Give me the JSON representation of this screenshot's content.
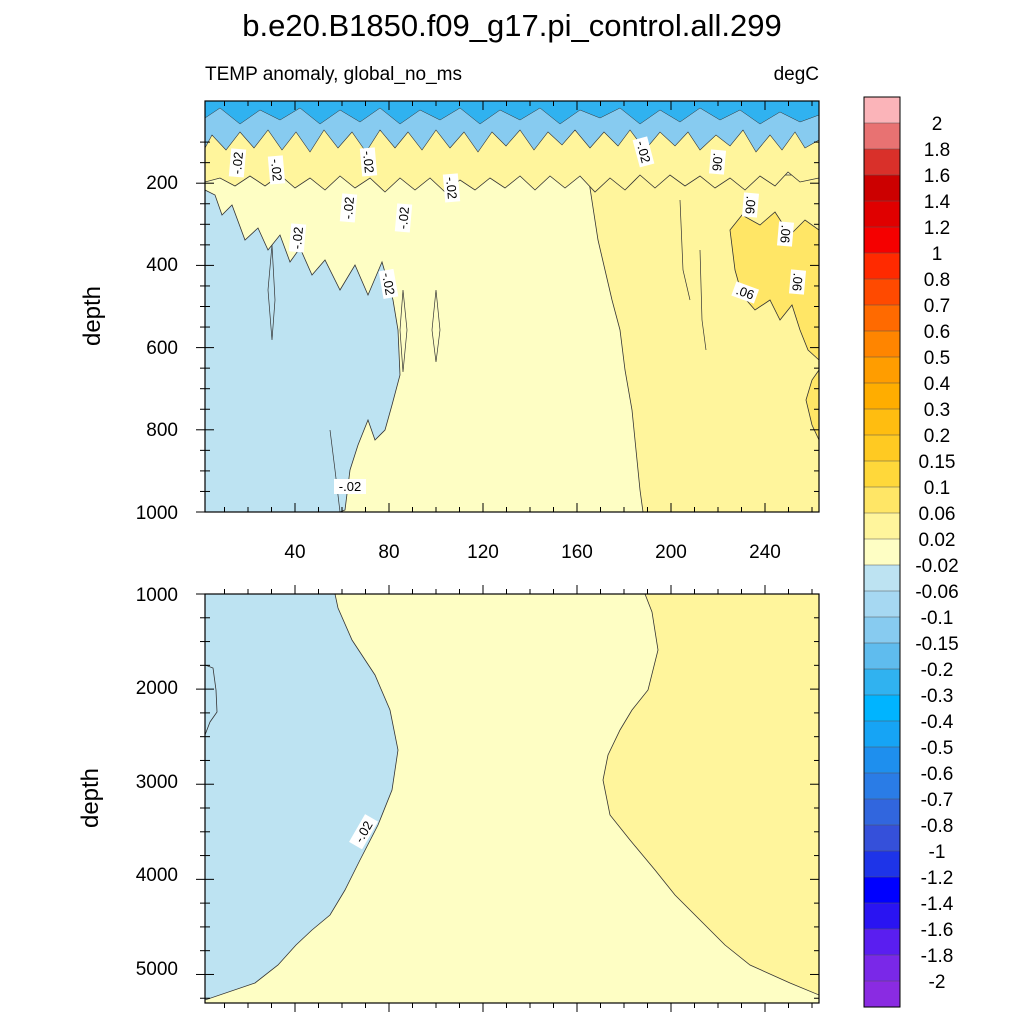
{
  "chart_data": {
    "type": "heatmap",
    "title": "b.e20.B1850.f09_g17.pi_control.all.299",
    "subtitle_left": "TEMP anomaly, global_no_ms",
    "subtitle_right": "degC",
    "x_ticks": [
      "40",
      "80",
      "120",
      "160",
      "200",
      "240"
    ],
    "x_range": [
      1,
      262
    ],
    "panels": [
      {
        "name": "upper",
        "ylabel": "depth",
        "ylim": [
          0,
          1000
        ],
        "y_ticks": [
          "200",
          "400",
          "600",
          "800",
          "1000"
        ],
        "contour_labels": [
          "-.02",
          "-.02",
          "-.02",
          "-.02",
          "-.02",
          "-.02",
          "-.02",
          "-.02",
          "-.02",
          "-.02",
          ".06",
          ".06",
          ".06",
          ".06",
          ".06"
        ],
        "regions": [
          {
            "level": "-0.06 to -0.02",
            "x": [
              1,
              80
            ],
            "depth": [
              200,
              1000
            ]
          },
          {
            "level": "-0.02 to 0.02",
            "x": [
              80,
              185
            ],
            "depth": [
              200,
              1000
            ]
          },
          {
            "level": "0.02 to 0.06",
            "x": [
              185,
              262
            ],
            "depth": [
              200,
              1000
            ]
          }
        ]
      },
      {
        "name": "lower",
        "ylabel": "depth",
        "ylim": [
          1000,
          5300
        ],
        "y_ticks": [
          "1000",
          "2000",
          "3000",
          "4000",
          "5000"
        ],
        "contour_labels": [
          "-.02"
        ],
        "regions": [
          {
            "level": "-0.06 to -0.02",
            "x": [
              1,
              80
            ],
            "depth": [
              1000,
              5300
            ]
          },
          {
            "level": "-0.02 to 0.02",
            "x": [
              80,
              180
            ],
            "depth": [
              1000,
              5300
            ]
          },
          {
            "level": "0.02 to 0.06",
            "x": [
              180,
              262
            ],
            "depth": [
              1000,
              5300
            ]
          }
        ]
      }
    ],
    "colorbar": {
      "labels": [
        "2",
        "1.8",
        "1.6",
        "1.4",
        "1.2",
        "1",
        "0.8",
        "0.7",
        "0.6",
        "0.5",
        "0.4",
        "0.3",
        "0.2",
        "0.15",
        "0.1",
        "0.06",
        "0.02",
        "-0.02",
        "-0.06",
        "-0.1",
        "-0.15",
        "-0.2",
        "-0.3",
        "-0.4",
        "-0.5",
        "-0.6",
        "-0.7",
        "-0.8",
        "-1",
        "-1.2",
        "-1.4",
        "-1.6",
        "-1.8",
        "-2"
      ],
      "colors": [
        "#fbb4b9",
        "#e87272",
        "#d9302a",
        "#cc0000",
        "#e00000",
        "#f50000",
        "#ff2a00",
        "#ff4a00",
        "#ff6a00",
        "#ff8500",
        "#ff9d00",
        "#ffad00",
        "#ffbd10",
        "#ffca22",
        "#ffd83a",
        "#ffe666",
        "#fff59c",
        "#fefec4",
        "#bde3f2",
        "#a6d8f2",
        "#87cbf0",
        "#5fbcee",
        "#30b2f0",
        "#00b4ff",
        "#16a4f5",
        "#1e8fee",
        "#2a7ce6",
        "#3166de",
        "#3550da",
        "#1e34e8",
        "#0000ff",
        "#2a14f2",
        "#5a1ef0",
        "#7a28e8",
        "#8a2be2"
      ]
    }
  }
}
